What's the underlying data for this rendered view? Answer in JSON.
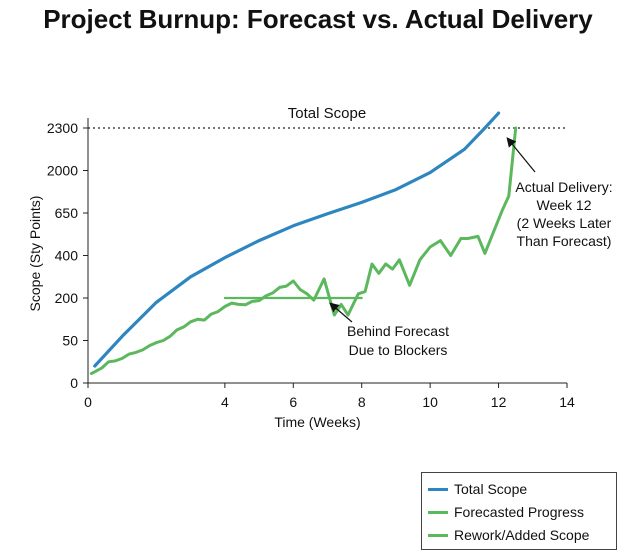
{
  "chart_data": {
    "type": "line",
    "title": "Project Burnup: Forecast vs. Actual Delivery",
    "xlabel": "Time (Weeks)",
    "ylabel": "Scope (Sty Points)",
    "x_ticks": [
      0,
      4,
      6,
      8,
      10,
      12,
      14
    ],
    "y_ticks": [
      "0",
      "50",
      "200",
      "400",
      "650",
      "2000",
      "2300"
    ],
    "xlim": [
      0,
      14
    ],
    "grid": false,
    "legend_position": "bottom-right",
    "reference_line": {
      "label": "Total Scope",
      "y": "2300",
      "style": "dotted"
    },
    "series": [
      {
        "name": "Total Scope",
        "color": "#2e86c1",
        "points": [
          [
            0.2,
            0.4
          ],
          [
            1,
            1.1
          ],
          [
            2,
            1.9
          ],
          [
            3,
            2.5
          ],
          [
            4,
            2.95
          ],
          [
            5,
            3.35
          ],
          [
            6,
            3.7
          ],
          [
            7,
            3.98
          ],
          [
            8,
            4.25
          ],
          [
            9,
            4.55
          ],
          [
            10,
            4.95
          ],
          [
            11,
            5.5
          ],
          [
            11.6,
            6.0
          ],
          [
            12,
            6.35
          ]
        ]
      },
      {
        "name": "Forecasted Progress",
        "color": "#5cb85c",
        "points": [
          [
            4,
            2.0
          ],
          [
            8,
            2.0
          ]
        ]
      },
      {
        "name": "Rework/Added Scope",
        "color": "#5cb85c",
        "points": [
          [
            0.1,
            0.22
          ],
          [
            0.4,
            0.35
          ],
          [
            0.6,
            0.5
          ],
          [
            0.8,
            0.52
          ],
          [
            1,
            0.58
          ],
          [
            1.2,
            0.68
          ],
          [
            1.4,
            0.72
          ],
          [
            1.6,
            0.78
          ],
          [
            1.8,
            0.88
          ],
          [
            2,
            0.95
          ],
          [
            2.2,
            1.0
          ],
          [
            2.4,
            1.1
          ],
          [
            2.6,
            1.25
          ],
          [
            2.8,
            1.32
          ],
          [
            3.0,
            1.44
          ],
          [
            3.2,
            1.5
          ],
          [
            3.4,
            1.48
          ],
          [
            3.6,
            1.62
          ],
          [
            3.8,
            1.68
          ],
          [
            4,
            1.8
          ],
          [
            4.2,
            1.88
          ],
          [
            4.4,
            1.85
          ],
          [
            4.6,
            1.84
          ],
          [
            4.8,
            1.92
          ],
          [
            5.0,
            1.94
          ],
          [
            5.2,
            2.05
          ],
          [
            5.4,
            2.12
          ],
          [
            5.6,
            2.25
          ],
          [
            5.8,
            2.28
          ],
          [
            6.0,
            2.4
          ],
          [
            6.2,
            2.2
          ],
          [
            6.4,
            2.1
          ],
          [
            6.6,
            1.95
          ],
          [
            6.9,
            2.45
          ],
          [
            7.2,
            1.6
          ],
          [
            7.4,
            1.85
          ],
          [
            7.6,
            1.6
          ],
          [
            7.9,
            2.1
          ],
          [
            8.1,
            2.15
          ],
          [
            8.3,
            2.8
          ],
          [
            8.5,
            2.58
          ],
          [
            8.7,
            2.8
          ],
          [
            8.9,
            2.68
          ],
          [
            9.1,
            2.9
          ],
          [
            9.4,
            2.3
          ],
          [
            9.7,
            2.9
          ],
          [
            10.0,
            3.2
          ],
          [
            10.3,
            3.35
          ],
          [
            10.6,
            3.0
          ],
          [
            10.9,
            3.4
          ],
          [
            11.1,
            3.4
          ],
          [
            11.4,
            3.45
          ],
          [
            11.6,
            3.05
          ],
          [
            11.8,
            3.45
          ],
          [
            11.95,
            3.75
          ],
          [
            12.1,
            4.05
          ],
          [
            12.3,
            4.4
          ],
          [
            12.5,
            6.0
          ]
        ]
      }
    ],
    "annotations": [
      {
        "text": "Behind Forecast",
        "text2": "Due to Blockers"
      },
      {
        "text": "Actual Delivery:",
        "text2": "Week 12",
        "text3": "(2 Weeks Later",
        "text4": "Than Forecast)"
      }
    ]
  }
}
